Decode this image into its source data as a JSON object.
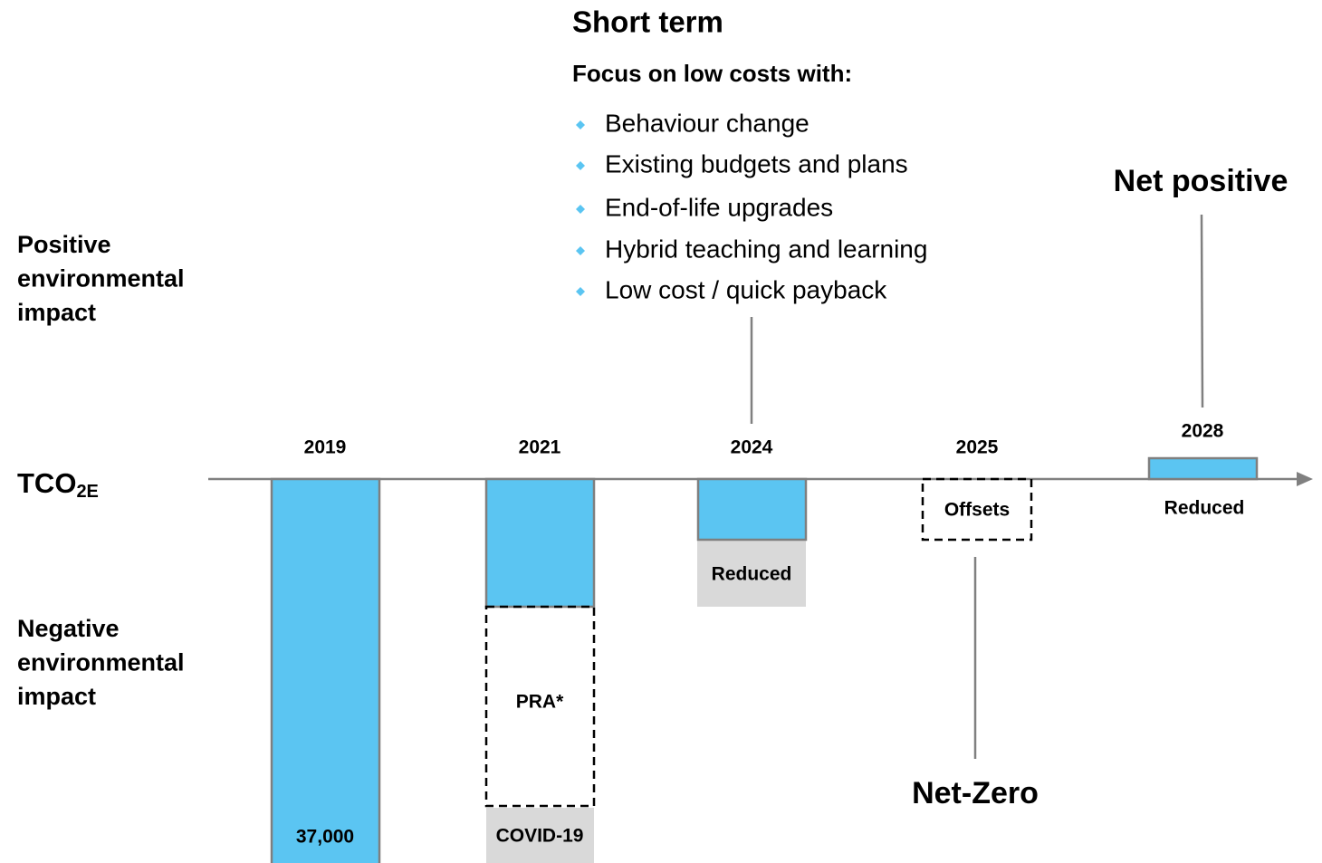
{
  "header": {
    "title": "Short term",
    "subtitle": "Focus on low costs with:"
  },
  "bullets": [
    "Behaviour change",
    "Existing budgets and plans",
    "End-of-life upgrades",
    "Hybrid teaching and learning",
    "Low cost / quick payback"
  ],
  "side_labels": {
    "positive": [
      "Positive",
      "environmental",
      "impact"
    ],
    "axis": {
      "main": "TCO",
      "sub": "2E"
    },
    "negative": [
      "Negative",
      "environmental",
      "impact"
    ]
  },
  "years": [
    "2019",
    "2021",
    "2024",
    "2025",
    "2028"
  ],
  "bar_labels": {
    "baseline": "37,000",
    "pra": "PRA*",
    "covid": "COVID-19",
    "reduced_2024": "Reduced",
    "offsets": "Offsets",
    "reduced_2028": "Reduced"
  },
  "milestones": {
    "net_zero": "Net-Zero",
    "net_positive": "Net positive"
  }
}
